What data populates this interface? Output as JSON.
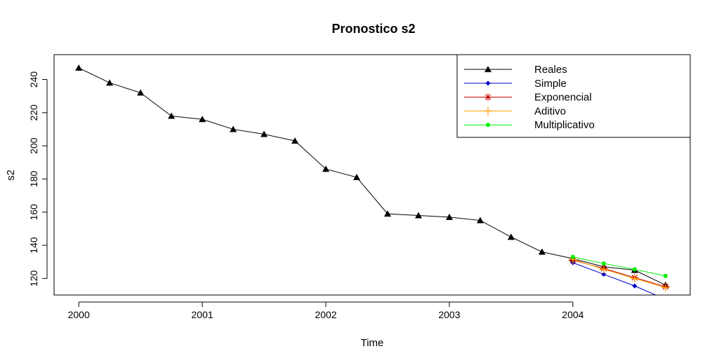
{
  "chart_data": {
    "type": "line",
    "title": "Pronostico s2",
    "xlabel": "Time",
    "ylabel": "s2",
    "xlim": [
      1999.8,
      2004.95
    ],
    "ylim": [
      110,
      255
    ],
    "x_ticks": [
      2000,
      2001,
      2002,
      2003,
      2004
    ],
    "y_ticks": [
      120,
      140,
      160,
      180,
      200,
      220,
      240
    ],
    "grid": false,
    "legend_position": "top-right",
    "series": [
      {
        "name": "Reales",
        "color": "#000000",
        "marker": "triangle",
        "x": [
          2000,
          2000.25,
          2000.5,
          2000.75,
          2001,
          2001.25,
          2001.5,
          2001.75,
          2002,
          2002.25,
          2002.5,
          2002.75,
          2003,
          2003.25,
          2003.5,
          2003.75,
          2004,
          2004.25,
          2004.5,
          2004.75
        ],
        "values": [
          247,
          238,
          232,
          218,
          216,
          210,
          207,
          203,
          186,
          181,
          159,
          158,
          157,
          155,
          145,
          136,
          132,
          127,
          125,
          116
        ]
      },
      {
        "name": "Simple",
        "color": "#0000cc",
        "marker": "diamond",
        "x": [
          2004,
          2004.25,
          2004.5,
          2004.67
        ],
        "values": [
          129.5,
          122.5,
          115.5,
          110
        ]
      },
      {
        "name": "Exponencial",
        "color": "#cc0000",
        "marker": "asterisk",
        "x": [
          2004,
          2004.25,
          2004.5,
          2004.75
        ],
        "values": [
          131,
          126,
          120.5,
          115
        ]
      },
      {
        "name": "Aditivo",
        "color": "#ffa500",
        "marker": "plus",
        "x": [
          2004,
          2004.25,
          2004.5,
          2004.75
        ],
        "values": [
          131.5,
          125.5,
          120,
          114.5
        ]
      },
      {
        "name": "Multiplicativo",
        "color": "#00ee00",
        "marker": "dot",
        "x": [
          2004,
          2004.25,
          2004.5,
          2004.75
        ],
        "values": [
          133,
          129,
          125.5,
          121.5
        ]
      }
    ]
  }
}
